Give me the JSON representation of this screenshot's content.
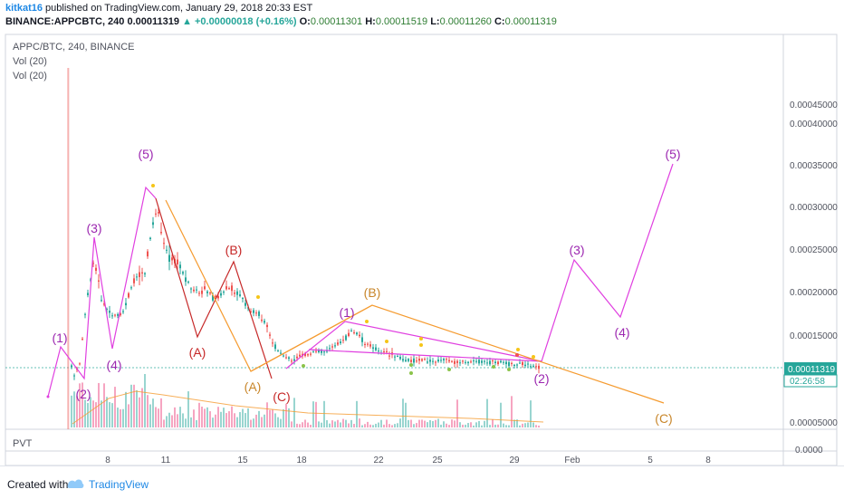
{
  "header": {
    "user": "kitkat16",
    "published_text": "published on TradingView.com, January 29, 2018 20:33 EST",
    "symbol_line": "BINANCE:APPCBTC, 240",
    "last_price": "0.00011319",
    "change": "▲ +0.00000018 (+0.16%)",
    "open_label": "O:",
    "open": "0.00011301",
    "high_label": "H:",
    "high": "0.00011519",
    "low_label": "L:",
    "low": "0.00011260",
    "close_label": "C:",
    "close": "0.00011319"
  },
  "legend": {
    "title": "APPC/BTC, 240, BINANCE",
    "vol1": "Vol (20)",
    "vol2": "Vol (20)",
    "pvt": "PVT"
  },
  "price_axis": {
    "ticks": [
      "0.00045000",
      "0.00040000",
      "0.00035000",
      "0.00030000",
      "0.00025000",
      "0.00020000",
      "0.00015000",
      "0.00005000"
    ],
    "current_price_tag": "0.00011319",
    "countdown": "02:26:58",
    "pvt_tick": "0.0000"
  },
  "time_axis": {
    "ticks": [
      "8",
      "11",
      "15",
      "18",
      "22",
      "25",
      "29",
      "Feb",
      "5",
      "8"
    ]
  },
  "wave_labels": {
    "magenta": [
      "(1)",
      "(2)",
      "(3)",
      "(4)",
      "(5)",
      "(1)",
      "(2)",
      "(3)",
      "(4)",
      "(5)"
    ],
    "red": [
      "(A)",
      "(B)",
      "(C)"
    ],
    "orange": [
      "(A)",
      "(B)",
      "(C)"
    ]
  },
  "colors": {
    "magenta": "#e040e0",
    "wave_label_magenta": "#9c27b0",
    "red": "#c62828",
    "orange": "#f59b30",
    "up": "#26a69a",
    "down": "#ef5350",
    "price_tag": "#26a69a"
  },
  "footer": {
    "created_with": "Created with",
    "brand": "TradingView"
  },
  "chart_data": {
    "type": "candlestick",
    "symbol": "BINANCE:APPCBTC",
    "interval": "240",
    "ohlc_last": {
      "open": 0.00011301,
      "high": 0.00011519,
      "low": 0.0001126,
      "close": 0.00011319
    },
    "ylim": [
      3e-05,
      0.0005
    ],
    "x_ticks": [
      "8",
      "11",
      "15",
      "18",
      "22",
      "25",
      "29",
      "Feb",
      "5",
      "8"
    ]
  }
}
